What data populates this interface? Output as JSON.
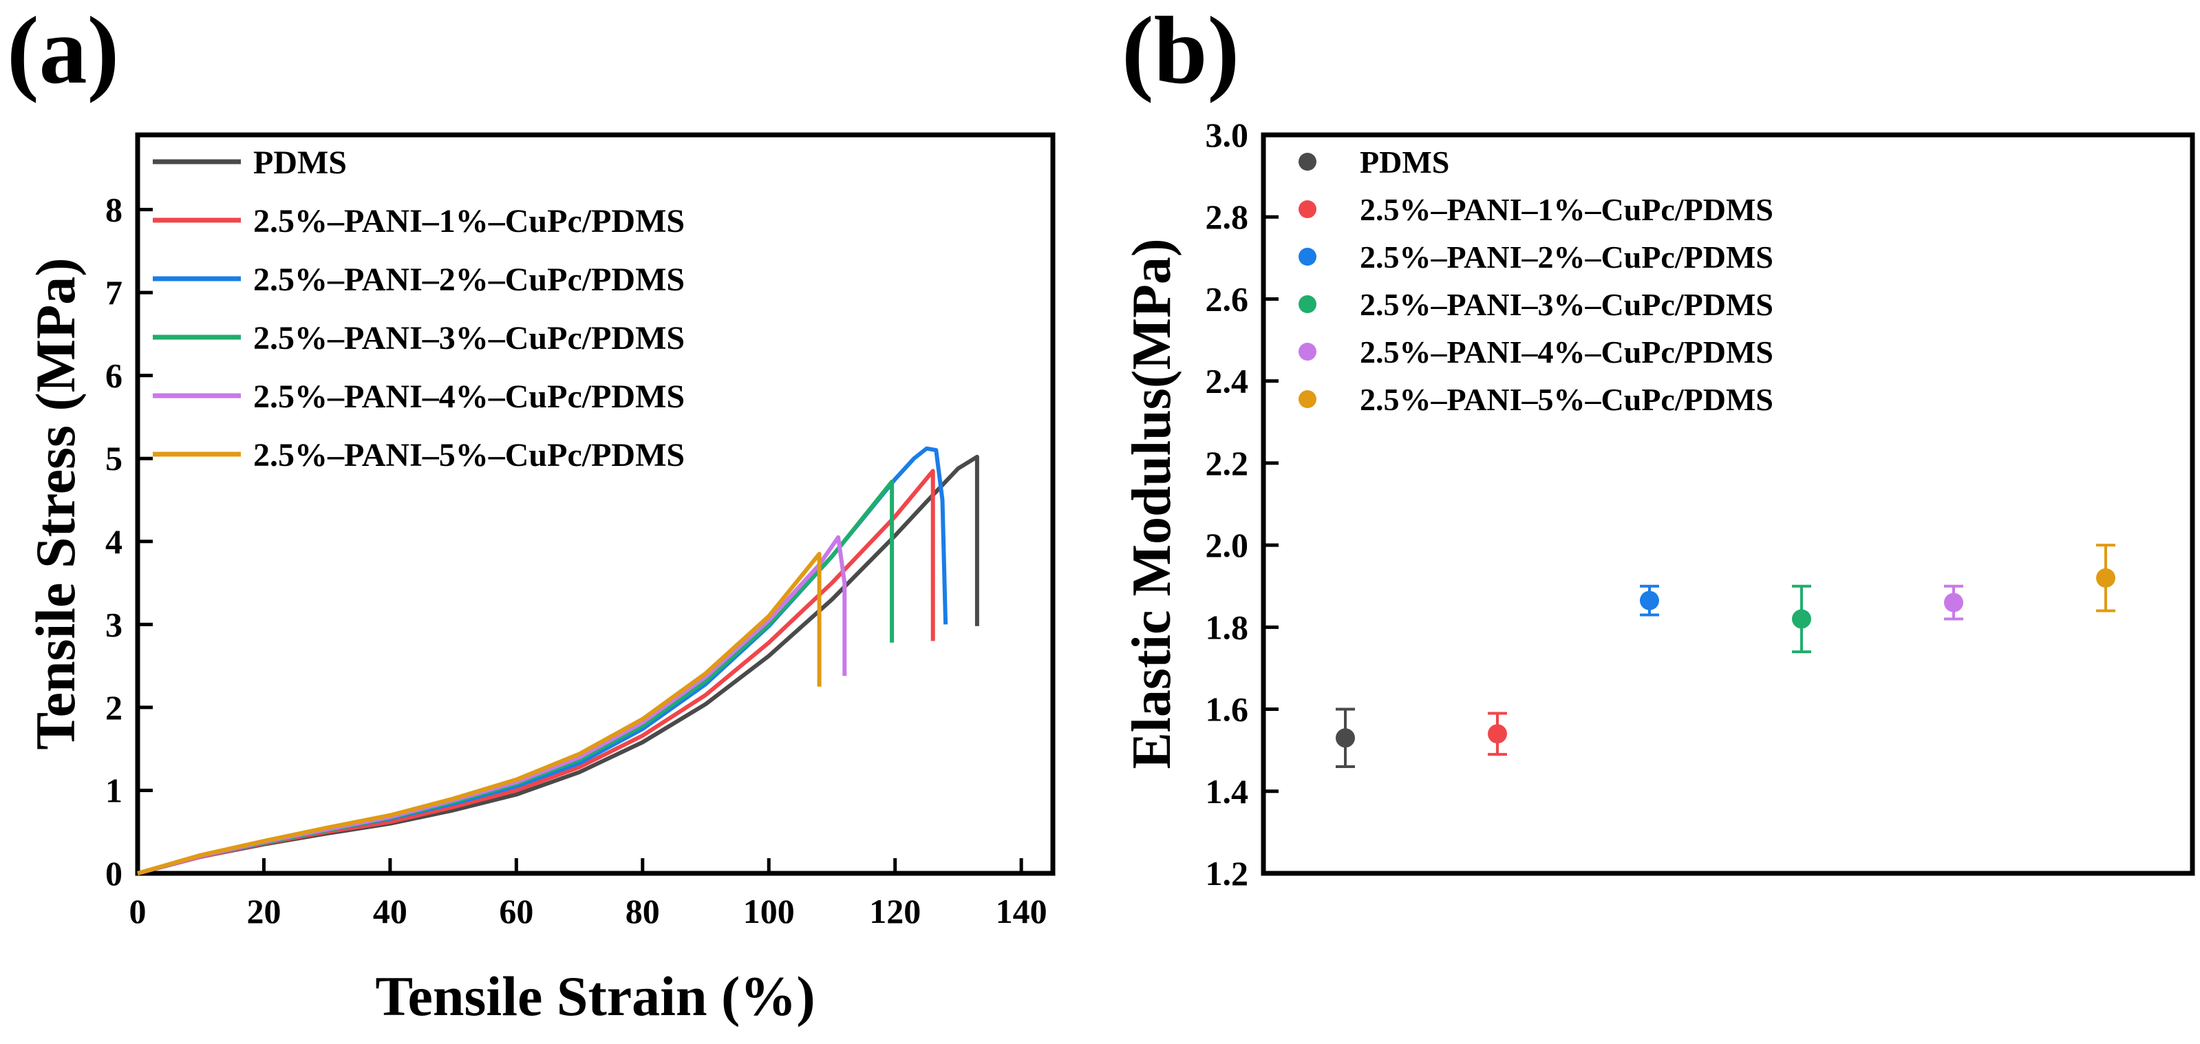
{
  "figure": {
    "panel_labels": [
      "(a)",
      "(b)"
    ]
  },
  "colors": {
    "PDMS": "#4a4a4a",
    "s1": "#f0464a",
    "s2": "#1a7de8",
    "s3": "#1fae6c",
    "s4": "#c879e8",
    "s5": "#e09a14"
  },
  "chart_data": [
    {
      "type": "line",
      "panel": "(a)",
      "title": "",
      "xlabel": "Tensile Strain (%)",
      "ylabel": "Tensile Stress (MPa)",
      "xlim": [
        0,
        145
      ],
      "ylim": [
        0,
        8.9
      ],
      "xticks": [
        0,
        20,
        40,
        60,
        80,
        100,
        120,
        140
      ],
      "yticks": [
        0,
        1,
        2,
        3,
        4,
        5,
        6,
        7,
        8
      ],
      "legend_position": "top-left",
      "series": [
        {
          "name": "PDMS",
          "color_key": "PDMS",
          "x": [
            0,
            10,
            20,
            30,
            40,
            50,
            60,
            70,
            80,
            90,
            100,
            110,
            120,
            125,
            130,
            133,
            133,
            133
          ],
          "y": [
            0,
            0.2,
            0.35,
            0.48,
            0.6,
            0.76,
            0.95,
            1.22,
            1.58,
            2.04,
            2.62,
            3.3,
            4.07,
            4.48,
            4.88,
            5.02,
            4.0,
            2.98
          ]
        },
        {
          "name": "2.5%–PANI–1%–CuPc/PDMS",
          "color_key": "s1",
          "x": [
            0,
            10,
            20,
            30,
            40,
            50,
            60,
            70,
            80,
            90,
            100,
            110,
            120,
            126,
            126,
            126
          ],
          "y": [
            0,
            0.2,
            0.36,
            0.5,
            0.62,
            0.8,
            1.0,
            1.28,
            1.66,
            2.15,
            2.78,
            3.5,
            4.3,
            4.85,
            3.8,
            2.8
          ]
        },
        {
          "name": "2.5%–PANI–2%–CuPc/PDMS",
          "color_key": "s2",
          "x": [
            0,
            10,
            20,
            30,
            40,
            50,
            60,
            70,
            80,
            90,
            100,
            110,
            120,
            123,
            125,
            126.5,
            127.5,
            128
          ],
          "y": [
            0,
            0.21,
            0.37,
            0.52,
            0.66,
            0.84,
            1.05,
            1.33,
            1.74,
            2.28,
            2.98,
            3.82,
            4.75,
            5.0,
            5.12,
            5.1,
            4.5,
            3.0
          ]
        },
        {
          "name": "2.5%–PANI–3%–CuPc/PDMS",
          "color_key": "s3",
          "x": [
            0,
            10,
            20,
            30,
            40,
            50,
            60,
            70,
            80,
            90,
            100,
            110,
            119.5,
            119.5,
            119.5
          ],
          "y": [
            0,
            0.21,
            0.37,
            0.52,
            0.67,
            0.86,
            1.08,
            1.37,
            1.78,
            2.32,
            3.0,
            3.82,
            4.72,
            3.8,
            2.78
          ]
        },
        {
          "name": "2.5%–PANI–4%–CuPc/PDMS",
          "color_key": "s4",
          "x": [
            0,
            10,
            20,
            30,
            40,
            50,
            60,
            70,
            80,
            90,
            100,
            108,
            111,
            112,
            112
          ],
          "y": [
            0,
            0.21,
            0.38,
            0.53,
            0.68,
            0.88,
            1.1,
            1.4,
            1.82,
            2.37,
            3.05,
            3.72,
            4.05,
            3.5,
            2.38
          ]
        },
        {
          "name": "2.5%–PANI–5%–CuPc/PDMS",
          "color_key": "s5",
          "x": [
            0,
            10,
            20,
            30,
            40,
            50,
            60,
            70,
            80,
            90,
            100,
            108,
            108,
            108
          ],
          "y": [
            0,
            0.22,
            0.39,
            0.55,
            0.7,
            0.9,
            1.13,
            1.44,
            1.86,
            2.41,
            3.1,
            3.85,
            3.0,
            2.25
          ]
        }
      ]
    },
    {
      "type": "scatter",
      "panel": "(b)",
      "title": "",
      "xlabel": "",
      "ylabel": "Elastic Modulus(MPa)",
      "ylim": [
        1.2,
        3.0
      ],
      "yticks": [
        "1.2",
        "1.4",
        "1.6",
        "1.8",
        "2.0",
        "2.2",
        "2.4",
        "2.6",
        "2.8",
        "3.0"
      ],
      "legend_position": "top-left",
      "series": [
        {
          "name": "PDMS",
          "color_key": "PDMS",
          "value": 1.53,
          "error": 0.07
        },
        {
          "name": "2.5%–PANI–1%–CuPc/PDMS",
          "color_key": "s1",
          "value": 1.54,
          "error": 0.05
        },
        {
          "name": "2.5%–PANI–2%–CuPc/PDMS",
          "color_key": "s2",
          "value": 1.865,
          "error": 0.035
        },
        {
          "name": "2.5%–PANI–3%–CuPc/PDMS",
          "color_key": "s3",
          "value": 1.82,
          "error": 0.08
        },
        {
          "name": "2.5%–PANI–4%–CuPc/PDMS",
          "color_key": "s4",
          "value": 1.86,
          "error": 0.04
        },
        {
          "name": "2.5%–PANI–5%–CuPc/PDMS",
          "color_key": "s5",
          "value": 1.92,
          "error": 0.08
        }
      ]
    }
  ]
}
